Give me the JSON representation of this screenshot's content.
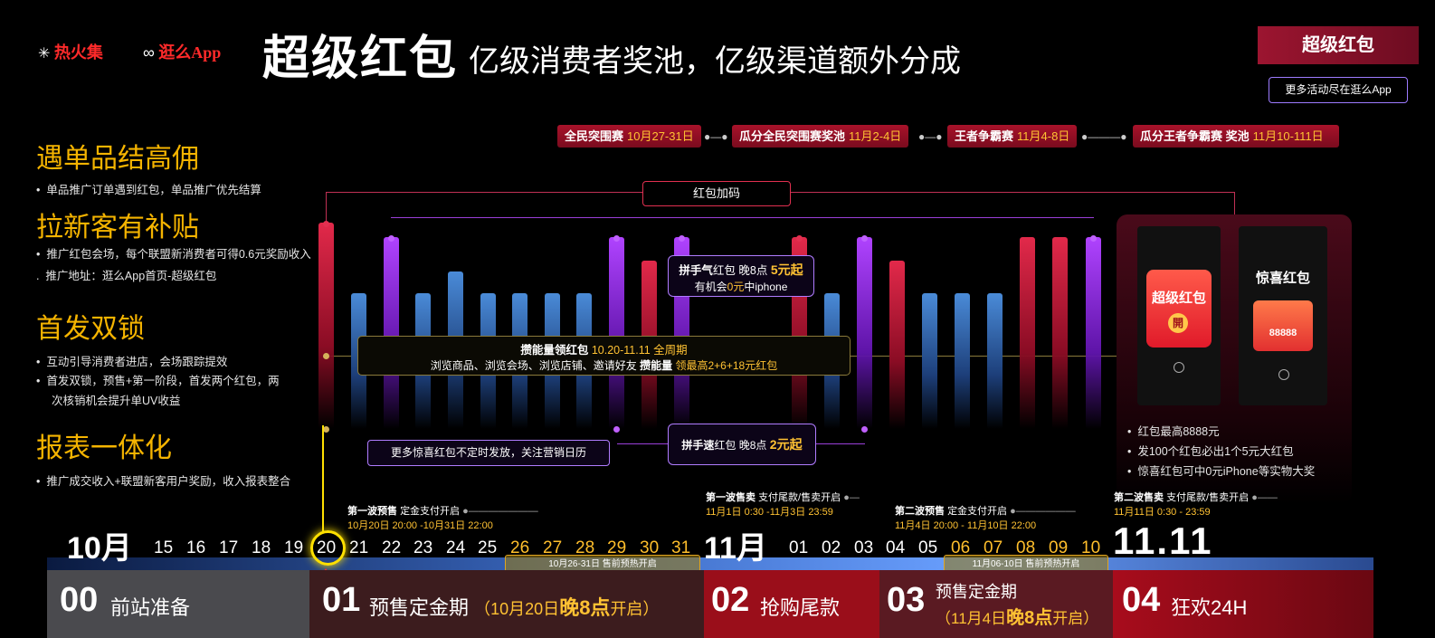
{
  "header": {
    "logo1": "热火集",
    "logo2": "逛么App",
    "title": "超级红包",
    "subtitle": "亿级消费者奖池，亿级渠道额外分成",
    "badge": "超级红包",
    "more_btn": "更多活动尽在逛么App"
  },
  "events": [
    {
      "name": "全民突围赛",
      "date": "10月27-31日"
    },
    {
      "name": "瓜分全民突围赛奖池",
      "date": "11月2-4日"
    },
    {
      "name": "王者争霸赛",
      "date": "11月4-8日"
    },
    {
      "name": "瓜分王者争霸赛 奖池",
      "date": "11月10-111日"
    }
  ],
  "left": {
    "s1_title": "遇单品结高佣",
    "s1_b1": "单品推广订单遇到红包，单品推广优先结算",
    "s2_title": "拉新客有补贴",
    "s2_b1": "推广红包会场，每个联盟新消费者可得0.6元奖励收入",
    "s2_b2": "推广地址：逛么App首页-超级红包",
    "s3_title": "首发双锁",
    "s3_b1": "互动引导消费者进店，会场跟踪提效",
    "s3_b2a": "首发双锁，预售+第一阶段，首发两个红包，两",
    "s3_b2b": "次核销机会提升单UV收益",
    "s4_title": "报表一体化",
    "s4_b1": "推广成交收入+联盟新客用户奖励，收入报表整合"
  },
  "boxes": {
    "hongbao_jiama": "红包加码",
    "pss_title": "拼手气",
    "pss_mid": "红包 晚8点",
    "pss_amt": "5元起",
    "pss_sub_a": "有机会",
    "pss_sub_b": "0元",
    "pss_sub_c": "中iphone",
    "znl_title": "攒能量领红包",
    "znl_date": "10.20-11.11 全周期",
    "znl_line_a": "浏览商品、浏览会场、浏览店铺、邀请好友",
    "znl_line_b": "攒能量",
    "znl_line_c": "领最高2+6+18元红包",
    "more_hb": "更多惊喜红包不定时发放，关注营销日历",
    "psd_title": "拼手速",
    "psd_mid": "红包 晚8点",
    "psd_amt": "2元起"
  },
  "phones": {
    "p1_title": "超级红包",
    "p1_btn": "開",
    "p2_title": "惊喜红包",
    "p2_num": "88888"
  },
  "right_bullets": [
    "红包最高8888元",
    "发100个红包必出1个5元大红包",
    "惊喜红包可中0元iPhone等实物大奖"
  ],
  "waves": [
    {
      "title": "第一波预售",
      "desc": "定金支付开启",
      "date": "10月20日 20:00 -10月31日 22:00"
    },
    {
      "title": "第一波售卖",
      "desc": "支付尾款/售卖开启",
      "date": "11月1日 0:30 -11月3日 23:59"
    },
    {
      "title": "第二波预售",
      "desc": "定金支付开启",
      "date": "11月4日 20:00 - 11月10日 22:00"
    },
    {
      "title": "第二波售卖",
      "desc": "支付尾款/售卖开启",
      "date": "11月11日 0:30 - 23:59"
    }
  ],
  "timeline": {
    "oct": "10月",
    "oct_days": [
      "15",
      "16",
      "17",
      "18",
      "19",
      "20",
      "21",
      "22",
      "23",
      "24",
      "25",
      "26",
      "27",
      "28",
      "29",
      "30",
      "31"
    ],
    "nov": "11月",
    "nov_days": [
      "01",
      "02",
      "03",
      "04",
      "05",
      "06",
      "07",
      "08",
      "09",
      "10"
    ],
    "double11": "11.11",
    "warm1": "10月26-31日 售前预热开启",
    "warm2": "11月06-10日 售前预热开启"
  },
  "phases": [
    {
      "num": "00",
      "label": "前站准备"
    },
    {
      "num": "01",
      "label": "预售定金期",
      "note_a": "（10月20日",
      "note_b": "晚8点",
      "note_c": "开启）"
    },
    {
      "num": "02",
      "label": "抢购尾款"
    },
    {
      "num": "03",
      "label": "预售定金期",
      "note_a": "（11月4日",
      "note_b": "晚8点",
      "note_c": "开启）"
    },
    {
      "num": "04",
      "label": "狂欢24H"
    }
  ]
}
